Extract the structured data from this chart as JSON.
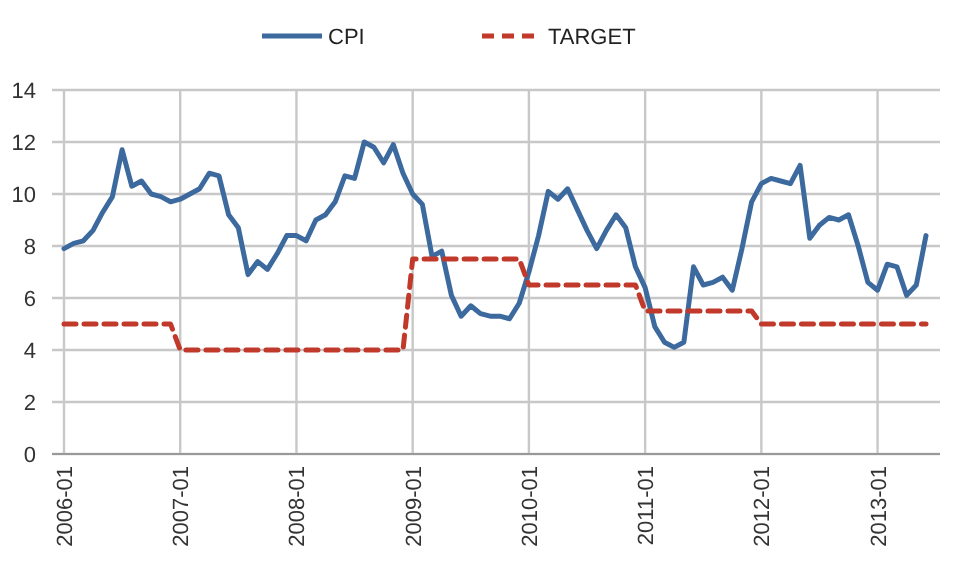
{
  "chart_data": {
    "type": "line",
    "categories": [
      "2006-01",
      null,
      null,
      null,
      null,
      null,
      null,
      null,
      null,
      null,
      null,
      null,
      "2007-01",
      null,
      null,
      null,
      null,
      null,
      null,
      null,
      null,
      null,
      null,
      null,
      "2008-01",
      null,
      null,
      null,
      null,
      null,
      null,
      null,
      null,
      null,
      null,
      null,
      "2009-01",
      null,
      null,
      null,
      null,
      null,
      null,
      null,
      null,
      null,
      null,
      null,
      "2010-01",
      null,
      null,
      null,
      null,
      null,
      null,
      null,
      null,
      null,
      null,
      null,
      "2011-01",
      null,
      null,
      null,
      null,
      null,
      null,
      null,
      null,
      null,
      null,
      null,
      "2012-01",
      null,
      null,
      null,
      null,
      null,
      null,
      null,
      null,
      null,
      null,
      null,
      "2013-01",
      null,
      null,
      null,
      null,
      null
    ],
    "series": [
      {
        "name": "CPI",
        "color": "#3d6a9e",
        "line_style": "solid",
        "values": [
          7.9,
          8.1,
          8.2,
          8.6,
          9.3,
          9.9,
          11.7,
          10.3,
          10.5,
          10.0,
          9.9,
          9.7,
          9.8,
          10.0,
          10.2,
          10.8,
          10.7,
          9.2,
          8.7,
          6.9,
          7.4,
          7.1,
          7.7,
          8.4,
          8.4,
          8.2,
          9.0,
          9.2,
          9.7,
          10.7,
          10.6,
          12.0,
          11.8,
          11.2,
          11.9,
          10.8,
          10.0,
          9.6,
          7.6,
          7.8,
          6.1,
          5.3,
          5.7,
          5.4,
          5.3,
          5.3,
          5.2,
          5.8,
          7.0,
          8.4,
          10.1,
          9.8,
          10.2,
          9.4,
          8.6,
          7.9,
          8.6,
          9.2,
          8.7,
          7.2,
          6.4,
          4.9,
          4.3,
          4.1,
          4.3,
          7.2,
          6.5,
          6.6,
          6.8,
          6.3,
          7.9,
          9.7,
          10.4,
          10.6,
          10.5,
          10.4,
          11.1,
          8.3,
          8.8,
          9.1,
          9.0,
          9.2,
          8.0,
          6.6,
          6.3,
          7.3,
          7.2,
          6.1,
          6.5,
          8.4
        ]
      },
      {
        "name": "TARGET",
        "color": "#c0392b",
        "line_style": "dashed",
        "values": [
          5,
          5,
          5,
          5,
          5,
          5,
          5,
          5,
          5,
          5,
          5,
          5,
          4,
          4,
          4,
          4,
          4,
          4,
          4,
          4,
          4,
          4,
          4,
          4,
          4,
          4,
          4,
          4,
          4,
          4,
          4,
          4,
          4,
          4,
          4,
          4,
          7.5,
          7.5,
          7.5,
          7.5,
          7.5,
          7.5,
          7.5,
          7.5,
          7.5,
          7.5,
          7.5,
          7.5,
          6.5,
          6.5,
          6.5,
          6.5,
          6.5,
          6.5,
          6.5,
          6.5,
          6.5,
          6.5,
          6.5,
          6.5,
          5.5,
          5.5,
          5.5,
          5.5,
          5.5,
          5.5,
          5.5,
          5.5,
          5.5,
          5.5,
          5.5,
          5.5,
          5,
          5,
          5,
          5,
          5,
          5,
          5,
          5,
          5,
          5,
          5,
          5,
          5,
          5,
          5,
          5,
          5,
          5
        ]
      }
    ],
    "ylim": [
      0,
      14
    ],
    "yticks": [
      0,
      2,
      4,
      6,
      8,
      10,
      12,
      14
    ],
    "grid": true,
    "legend": "top",
    "marker": "none"
  }
}
